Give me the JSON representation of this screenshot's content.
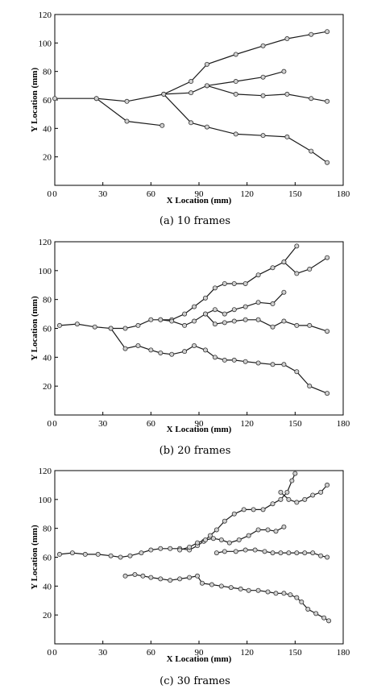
{
  "chart_data": [
    {
      "type": "line",
      "caption": "(a) 10 frames",
      "xlabel": "X Location (mm)",
      "ylabel": "Y Location (mm)",
      "xlim": [
        0,
        180
      ],
      "ylim": [
        0,
        120
      ],
      "xticks": [
        0,
        30,
        60,
        90,
        120,
        150,
        180
      ],
      "yticks": [
        20,
        40,
        60,
        80,
        100,
        120
      ],
      "series": [
        {
          "x": [
            0,
            26,
            45,
            68,
            85,
            95,
            113,
            130,
            145,
            160,
            170
          ],
          "y": [
            61,
            61,
            59,
            64,
            73,
            85,
            92,
            98,
            103,
            106,
            108
          ]
        },
        {
          "x": [
            68,
            85,
            95,
            113,
            130,
            143
          ],
          "y": [
            64,
            65,
            70,
            73,
            76,
            80
          ]
        },
        {
          "x": [
            95,
            113,
            130,
            145,
            160,
            170
          ],
          "y": [
            70,
            64,
            63,
            64,
            61,
            59
          ]
        },
        {
          "x": [
            68,
            85,
            95,
            113,
            130,
            145,
            160,
            170
          ],
          "y": [
            64,
            44,
            41,
            36,
            35,
            34,
            24,
            16
          ]
        },
        {
          "x": [
            26,
            45,
            67
          ],
          "y": [
            61,
            45,
            42
          ]
        }
      ]
    },
    {
      "type": "line",
      "caption": "(b) 20 frames",
      "xlabel": "X Location (mm)",
      "ylabel": "Y Location (mm)",
      "xlim": [
        0,
        180
      ],
      "ylim": [
        0,
        120
      ],
      "xticks": [
        0,
        30,
        60,
        90,
        120,
        150,
        180
      ],
      "yticks": [
        20,
        40,
        60,
        80,
        100,
        120
      ],
      "series": [
        {
          "x": [
            3,
            14,
            25,
            35,
            44,
            52,
            60,
            66,
            73,
            81,
            87,
            94,
            100,
            106,
            112,
            119,
            127,
            136,
            143,
            151
          ],
          "y": [
            62,
            63,
            61,
            60,
            60,
            62,
            66,
            66,
            66,
            70,
            75,
            81,
            88,
            91,
            91,
            91,
            97,
            102,
            106,
            117
          ]
        },
        {
          "x": [
            143,
            151,
            159,
            170
          ],
          "y": [
            106,
            98,
            101,
            109
          ]
        },
        {
          "x": [
            66,
            73,
            81,
            87,
            94,
            100,
            106,
            112,
            119,
            127,
            136,
            143
          ],
          "y": [
            66,
            65,
            62,
            65,
            70,
            73,
            70,
            73,
            75,
            78,
            77,
            85
          ]
        },
        {
          "x": [
            94,
            100,
            106,
            112,
            119,
            127,
            136,
            143,
            151,
            159,
            170
          ],
          "y": [
            70,
            63,
            64,
            65,
            66,
            66,
            61,
            65,
            62,
            62,
            58
          ]
        },
        {
          "x": [
            35,
            44,
            52,
            60,
            66,
            73,
            81,
            87,
            94,
            100,
            106,
            112,
            119,
            127,
            136,
            143,
            151,
            159,
            170
          ],
          "y": [
            60,
            46,
            48,
            45,
            43,
            42,
            44,
            48,
            45,
            40,
            38,
            38,
            37,
            36,
            35,
            35,
            30,
            20,
            15
          ]
        }
      ]
    },
    {
      "type": "line",
      "caption": "(c) 30 frames",
      "xlabel": "X Location (mm)",
      "ylabel": "Y Location (mm)",
      "xlim": [
        0,
        180
      ],
      "ylim": [
        0,
        120
      ],
      "xticks": [
        0,
        30,
        60,
        90,
        120,
        150,
        180
      ],
      "yticks": [
        20,
        40,
        60,
        80,
        100,
        120
      ],
      "series": [
        {
          "x": [
            3,
            11,
            19,
            27,
            35,
            41,
            47,
            54,
            60,
            66,
            72,
            78,
            84,
            89,
            93,
            97,
            101,
            106,
            112,
            118,
            124,
            130,
            136,
            141,
            145,
            148,
            150
          ],
          "y": [
            62,
            63,
            62,
            62,
            61,
            60,
            61,
            63,
            65,
            66,
            66,
            66,
            65,
            68,
            71,
            75,
            79,
            85,
            90,
            93,
            93,
            93,
            97,
            100,
            105,
            113,
            118
          ]
        },
        {
          "x": [
            141,
            146,
            151,
            156,
            161,
            166,
            170
          ],
          "y": [
            105,
            100,
            98,
            100,
            103,
            105,
            110
          ]
        },
        {
          "x": [
            78,
            84,
            89,
            94,
            99,
            104,
            109,
            115,
            121,
            127,
            133,
            138,
            143
          ],
          "y": [
            65,
            67,
            70,
            72,
            73,
            72,
            70,
            72,
            75,
            79,
            79,
            78,
            81
          ]
        },
        {
          "x": [
            101,
            106,
            113,
            119,
            125,
            131,
            136,
            141,
            146,
            151,
            156,
            161,
            166,
            170
          ],
          "y": [
            63,
            64,
            64,
            65,
            65,
            64,
            63,
            63,
            63,
            63,
            63,
            63,
            61,
            60
          ]
        },
        {
          "x": [
            44,
            50,
            55,
            60,
            66,
            72,
            78,
            84,
            89,
            92,
            98,
            104,
            110,
            116,
            121,
            127,
            133,
            138,
            143,
            147,
            151,
            154,
            158,
            163,
            168,
            171
          ],
          "y": [
            47,
            48,
            47,
            46,
            45,
            44,
            45,
            46,
            47,
            42,
            41,
            40,
            39,
            38,
            37,
            37,
            36,
            35,
            35,
            34,
            32,
            29,
            24,
            21,
            18,
            16
          ]
        }
      ]
    }
  ]
}
